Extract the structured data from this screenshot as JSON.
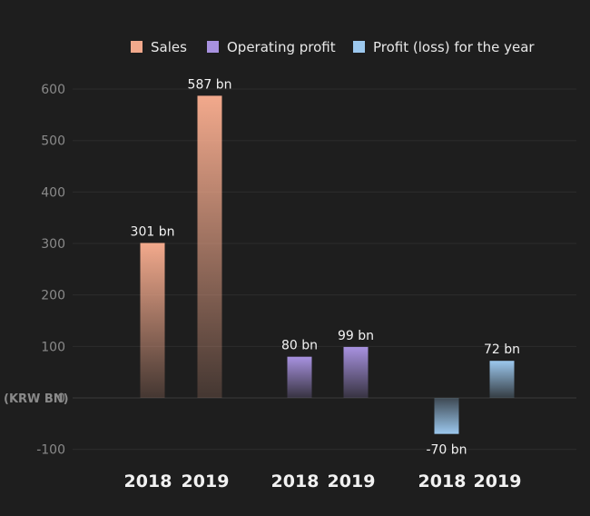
{
  "chart_data": {
    "type": "bar",
    "unit_label": "(KRW BN)",
    "ylim": [
      -100,
      600
    ],
    "yticks": [
      -100,
      0,
      100,
      200,
      300,
      400,
      500,
      600
    ],
    "grid": true,
    "legend_position": "top-center",
    "series": [
      {
        "name": "Sales",
        "color": "#f2a98c",
        "categories": [
          "2018",
          "2019"
        ],
        "values": [
          301,
          587
        ],
        "labels": [
          "301 bn",
          "587 bn"
        ]
      },
      {
        "name": "Operating profit",
        "color": "#a892e0",
        "categories": [
          "2018",
          "2019"
        ],
        "values": [
          80,
          99
        ],
        "labels": [
          "80 bn",
          "99 bn"
        ]
      },
      {
        "name": "Profit (loss) for the year",
        "color": "#9cc8ee",
        "categories": [
          "2018",
          "2019"
        ],
        "values": [
          -70,
          72
        ],
        "labels": [
          "-70 bn",
          "72 bn"
        ]
      }
    ]
  }
}
